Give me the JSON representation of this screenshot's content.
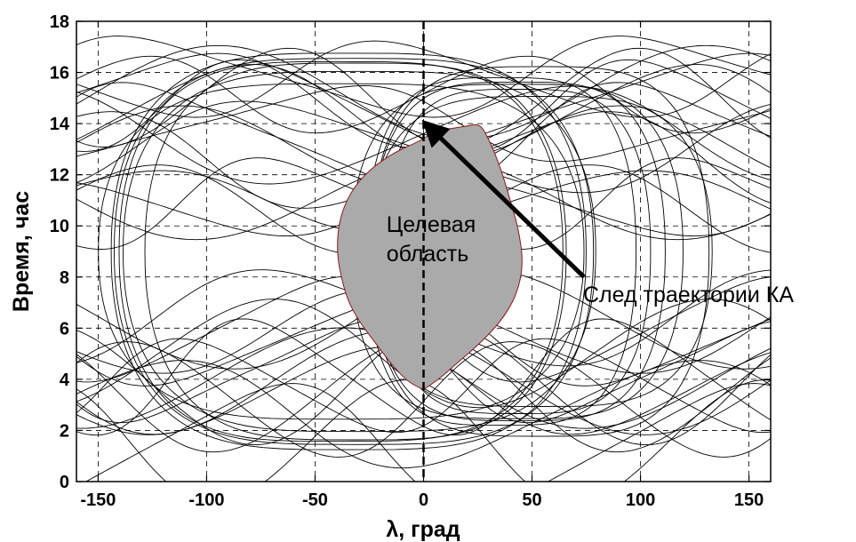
{
  "chart_data": {
    "type": "line",
    "title": "",
    "xlabel": "λ, град",
    "ylabel": "Время, час",
    "xlim": [
      -160,
      160
    ],
    "ylim": [
      0,
      18
    ],
    "xticks": [
      -150,
      -100,
      -50,
      0,
      50,
      100,
      150
    ],
    "yticks": [
      0,
      2,
      4,
      6,
      8,
      10,
      12,
      14,
      16,
      18
    ],
    "grid": true,
    "legend": "none",
    "target_region": {
      "label_line1": "Целевая",
      "label_line2": "область",
      "fill_color": "#aaaaaa",
      "outline_color": "#8b1a1a",
      "boundary": [
        {
          "x": 0,
          "y": 3.6
        },
        {
          "x": -6,
          "y": 3.8
        },
        {
          "x": -14,
          "y": 4.5
        },
        {
          "x": -22,
          "y": 5.4
        },
        {
          "x": -30,
          "y": 6.3
        },
        {
          "x": -35,
          "y": 7.1
        },
        {
          "x": -38,
          "y": 8.0
        },
        {
          "x": -40,
          "y": 9.0
        },
        {
          "x": -39,
          "y": 10.2
        },
        {
          "x": -34,
          "y": 11.3
        },
        {
          "x": -25,
          "y": 12.2
        },
        {
          "x": -13,
          "y": 12.9
        },
        {
          "x": -2,
          "y": 13.3
        },
        {
          "x": 5,
          "y": 13.7
        },
        {
          "x": 12,
          "y": 13.8
        },
        {
          "x": 20,
          "y": 13.9
        },
        {
          "x": 26,
          "y": 14.0
        },
        {
          "x": 30,
          "y": 13.4
        },
        {
          "x": 35,
          "y": 12.4
        },
        {
          "x": 40,
          "y": 11.0
        },
        {
          "x": 44,
          "y": 9.8
        },
        {
          "x": 46,
          "y": 8.5
        },
        {
          "x": 43,
          "y": 7.3
        },
        {
          "x": 36,
          "y": 6.3
        },
        {
          "x": 26,
          "y": 5.4
        },
        {
          "x": 15,
          "y": 4.6
        },
        {
          "x": 7,
          "y": 4.0
        },
        {
          "x": 0,
          "y": 3.6
        }
      ]
    },
    "annotation": {
      "text": "След траектории КА",
      "arrow_from": {
        "x": 74,
        "y": 8.0
      },
      "arrow_to": {
        "x": 1,
        "y": 14.0
      }
    },
    "reference_line": {
      "x": 0
    },
    "track_families": [
      {
        "kind": "sine",
        "count": 12,
        "amplitude": [
          1.6,
          2.6
        ],
        "period": [
          150,
          240
        ],
        "center": [
          1.0,
          4.5
        ]
      },
      {
        "kind": "sine",
        "count": 14,
        "amplitude": [
          1.2,
          2.4
        ],
        "period": [
          160,
          260
        ],
        "center": [
          12.2,
          16.6
        ]
      },
      {
        "kind": "sine",
        "count": 6,
        "amplitude": [
          1.5,
          2.2
        ],
        "period": [
          180,
          240
        ],
        "center": [
          5.0,
          7.0
        ]
      },
      {
        "kind": "sine",
        "count": 5,
        "amplitude": [
          1.0,
          1.8
        ],
        "period": [
          180,
          240
        ],
        "center": [
          10.5,
          12.0
        ]
      },
      {
        "kind": "loop",
        "count": 6,
        "center_x": [
          -40,
          -25
        ],
        "half_width": [
          85,
          120
        ],
        "center_y": 9,
        "half_height": [
          6.5,
          8.5
        ]
      },
      {
        "kind": "loop",
        "count": 6,
        "center_x": [
          35,
          55
        ],
        "half_width": [
          50,
          80
        ],
        "center_y": 9,
        "half_height": [
          6.0,
          8.0
        ]
      }
    ]
  }
}
